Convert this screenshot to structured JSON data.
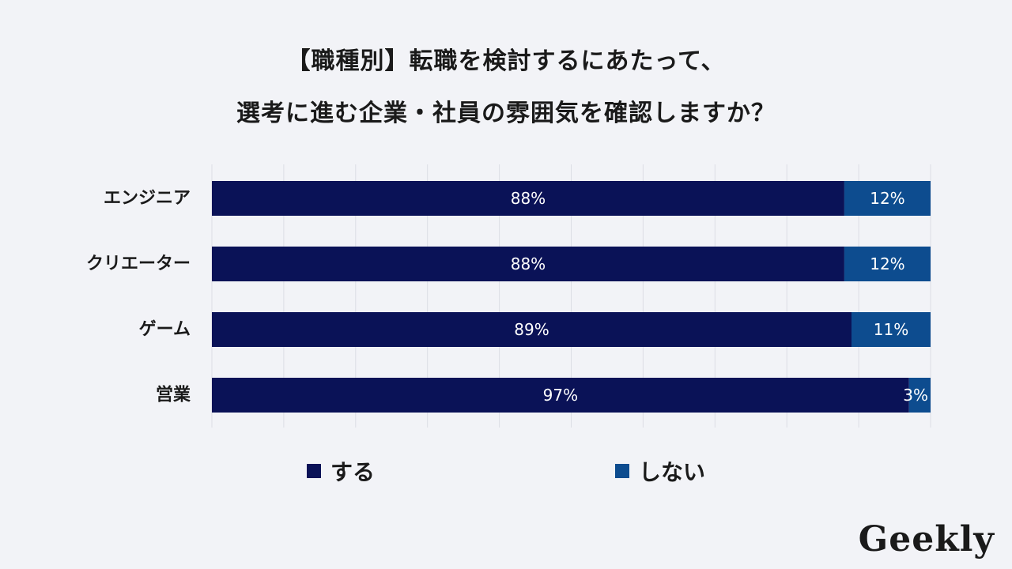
{
  "chart_data": {
    "type": "bar",
    "orientation": "horizontal",
    "stacked": true,
    "title": [
      "【職種別】転職を検討するにあたって、",
      "選考に進む企業・社員の雰囲気を確認しますか？"
    ],
    "categories": [
      "エンジニア",
      "クリエーター",
      "ゲーム",
      "営業"
    ],
    "series": [
      {
        "name": "する",
        "values": [
          88,
          88,
          89,
          97
        ],
        "labels": [
          "88%",
          "88%",
          "89%",
          "97%"
        ],
        "color": "#0a1257"
      },
      {
        "name": "しない",
        "values": [
          12,
          12,
          11,
          3
        ],
        "labels": [
          "12%",
          "12%",
          "11%",
          "3%"
        ],
        "color": "#0d4c8f"
      }
    ],
    "xlim": [
      0,
      100
    ],
    "grid": true,
    "legend_position": "bottom"
  },
  "logo": {
    "text": "Geekly"
  }
}
